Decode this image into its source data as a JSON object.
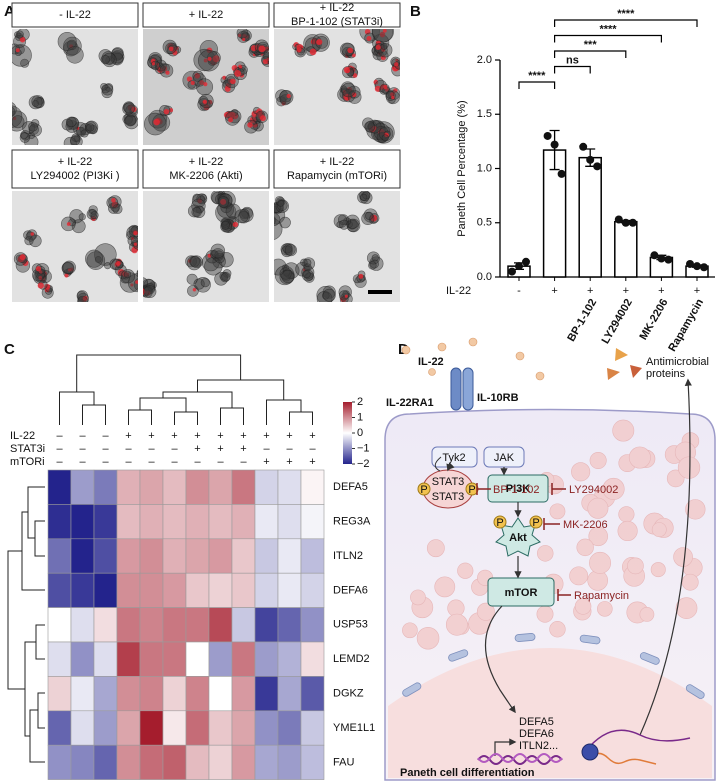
{
  "panel_labels": [
    "A",
    "B",
    "C",
    "D"
  ],
  "images": [
    {
      "title": [
        "- IL-22"
      ]
    },
    {
      "title": [
        "+ IL-22"
      ]
    },
    {
      "title": [
        "+ IL-22",
        "BP-1-102 (STAT3i)"
      ]
    },
    {
      "title": [
        "+ IL-22",
        "LY294002 (PI3Ki )"
      ]
    },
    {
      "title": [
        "+ IL-22",
        "MK-2206 (Akti)"
      ]
    },
    {
      "title": [
        "+ IL-22",
        "Rapamycin (mTORi)"
      ]
    }
  ],
  "chart_data": [
    {
      "type": "bar",
      "y_label": "Paneth Cell Percentage (%)",
      "categories": [
        null,
        null,
        "BP-1-102",
        "LY294002",
        "MK-2206",
        "Rapamycin"
      ],
      "treatment_label": "IL-22",
      "treatment": [
        "-",
        "+",
        "+",
        "+",
        "+",
        "+"
      ],
      "values": [
        0.1,
        1.17,
        1.1,
        0.51,
        0.18,
        0.1
      ],
      "errors": [
        0.03,
        0.18,
        0.08,
        0.01,
        0.02,
        0.01
      ],
      "points": [
        [
          0.05,
          0.1,
          0.14
        ],
        [
          1.3,
          1.22,
          0.95
        ],
        [
          1.2,
          1.08,
          1.02
        ],
        [
          0.53,
          0.5,
          0.5
        ],
        [
          0.2,
          0.17,
          0.16
        ],
        [
          0.12,
          0.1,
          0.09
        ]
      ],
      "color": "#ffffff",
      "ylim": [
        0,
        2
      ],
      "yticks": [
        {
          "value": 0,
          "label": "0.0"
        },
        0.5,
        {
          "value": 1,
          "label": "1.0"
        },
        1.5,
        {
          "value": 2,
          "label": "2.0"
        }
      ],
      "significance": [
        {
          "from": 0,
          "to": 1,
          "label": "****"
        },
        {
          "from": 1,
          "to": 2,
          "label": "ns"
        },
        {
          "from": 1,
          "to": 3,
          "label": "***"
        },
        {
          "from": 1,
          "to": 4,
          "label": "****"
        },
        {
          "from": 1,
          "to": 5,
          "label": "****"
        }
      ]
    },
    {
      "type": "heatmap",
      "rows": [
        "DEFA5",
        "REG3A",
        "ITLN2",
        "DEFA6",
        "USP53",
        "LEMD2",
        "DGKZ",
        "YME1L1",
        "FAU"
      ],
      "annotations": [
        {
          "name": "IL-22",
          "values": [
            "–",
            "–",
            "–",
            "+",
            "+",
            "+",
            "+",
            "+",
            "+",
            "+",
            "+",
            "+"
          ]
        },
        {
          "name": "STAT3i",
          "values": [
            "–",
            "–",
            "–",
            "–",
            "–",
            "–",
            "+",
            "+",
            "+",
            "–",
            "–",
            "–"
          ]
        },
        {
          "name": "mTORi",
          "values": [
            "–",
            "–",
            "–",
            "–",
            "–",
            "–",
            "–",
            "–",
            "–",
            "+",
            "+",
            "+"
          ]
        }
      ],
      "values": [
        [
          -2.3,
          -0.9,
          -1.2,
          0.7,
          0.8,
          0.6,
          1.0,
          0.8,
          1.2,
          -0.4,
          -0.3,
          0.1
        ],
        [
          -1.9,
          -2.0,
          -1.8,
          0.6,
          0.7,
          0.6,
          0.7,
          0.6,
          0.7,
          -0.2,
          -0.3,
          -0.1
        ],
        [
          -1.3,
          -2.2,
          -1.6,
          0.9,
          1.0,
          0.7,
          0.8,
          0.9,
          0.5,
          -0.5,
          -0.2,
          -0.6
        ],
        [
          -1.6,
          -1.8,
          -2.0,
          1.0,
          1.0,
          0.9,
          0.5,
          0.4,
          0.5,
          -0.4,
          -0.2,
          -0.4
        ],
        [
          0.0,
          -0.3,
          0.3,
          1.2,
          1.1,
          1.2,
          1.2,
          1.6,
          -0.5,
          -1.7,
          -1.4,
          -1.0
        ],
        [
          -0.3,
          -1.0,
          -0.3,
          1.7,
          1.2,
          1.2,
          0.0,
          -0.9,
          1.2,
          -0.9,
          -0.7,
          0.3
        ],
        [
          0.4,
          -0.2,
          -0.8,
          1.0,
          1.1,
          0.4,
          1.1,
          0.0,
          0.9,
          -1.8,
          -0.8,
          -1.5
        ],
        [
          -1.4,
          -0.3,
          -0.9,
          0.8,
          2.0,
          0.2,
          1.3,
          0.5,
          0.8,
          -1.0,
          -1.2,
          -0.5
        ],
        [
          -1.0,
          -1.1,
          -1.4,
          1.0,
          1.3,
          1.4,
          0.6,
          0.4,
          0.9,
          -0.8,
          -0.9,
          -0.6
        ]
      ],
      "colorbar": {
        "lim": [
          -2,
          2
        ],
        "ticks": [
          2,
          1,
          0,
          {
            "value": -1,
            "label": "−1"
          },
          {
            "value": -2,
            "label": "−2"
          }
        ],
        "colors": [
          "#23238c",
          "#ffffff",
          "#a51d2d"
        ]
      }
    }
  ],
  "diagram": {
    "ligand": "IL-22",
    "secreted": [
      "Antimicrobial",
      "proteins"
    ],
    "receptors": [
      "IL-22RA1",
      "IL-10RB"
    ],
    "kinases": [
      "Tyk2",
      "JAK"
    ],
    "stat": [
      "STAT3",
      "STAT3"
    ],
    "phospho": [
      "P",
      "P",
      "P",
      "P"
    ],
    "nodes": [
      "PI3K",
      "Akt",
      "mTOR"
    ],
    "inhibitors": [
      "BP-1-102",
      "LY294002",
      "MK-2206",
      "Rapamycin"
    ],
    "genes": [
      "DEFA5",
      "DEFA6",
      "ITLN2..."
    ],
    "process": "Paneth cell differentiation"
  }
}
